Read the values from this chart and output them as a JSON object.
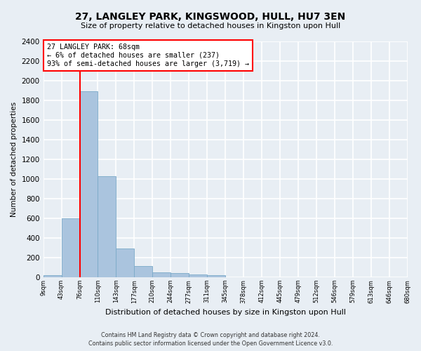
{
  "title": "27, LANGLEY PARK, KINGSWOOD, HULL, HU7 3EN",
  "subtitle": "Size of property relative to detached houses in Kingston upon Hull",
  "xlabel": "Distribution of detached houses by size in Kingston upon Hull",
  "ylabel": "Number of detached properties",
  "bar_values": [
    20,
    600,
    1890,
    1030,
    290,
    115,
    50,
    45,
    30,
    20,
    0,
    0,
    0,
    0,
    0,
    0,
    0,
    0,
    0,
    0
  ],
  "bar_labels": [
    "9sqm",
    "43sqm",
    "76sqm",
    "110sqm",
    "143sqm",
    "177sqm",
    "210sqm",
    "244sqm",
    "277sqm",
    "311sqm",
    "345sqm",
    "378sqm",
    "412sqm",
    "445sqm",
    "479sqm",
    "512sqm",
    "546sqm",
    "579sqm",
    "613sqm",
    "646sqm",
    "680sqm"
  ],
  "ylim": [
    0,
    2400
  ],
  "yticks": [
    0,
    200,
    400,
    600,
    800,
    1000,
    1200,
    1400,
    1600,
    1800,
    2000,
    2200,
    2400
  ],
  "bar_color": "#aac4de",
  "bar_edge_color": "#7baac8",
  "highlight_bar_index": 2,
  "annotation_text": "27 LANGLEY PARK: 68sqm\n← 6% of detached houses are smaller (237)\n93% of semi-detached houses are larger (3,719) →",
  "footer_line1": "Contains HM Land Registry data © Crown copyright and database right 2024.",
  "footer_line2": "Contains public sector information licensed under the Open Government Licence v3.0.",
  "background_color": "#e8eef4",
  "grid_color": "#ffffff"
}
